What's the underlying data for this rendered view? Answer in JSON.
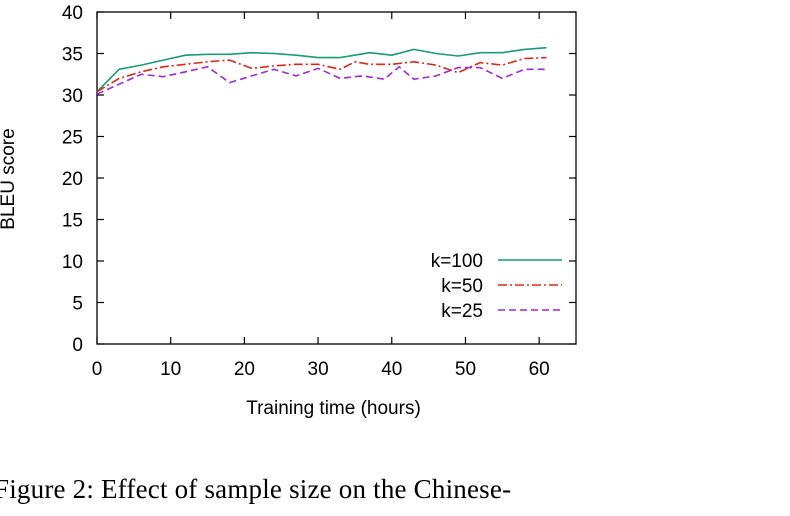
{
  "caption": "Figure 2:  Effect of sample size on the Chinese-",
  "chart_data": {
    "type": "line",
    "title": "",
    "xlabel": "Training time (hours)",
    "ylabel": "BLEU score",
    "xlim": [
      0,
      65
    ],
    "ylim": [
      0,
      40
    ],
    "xticks": [
      0,
      10,
      20,
      30,
      40,
      50,
      60
    ],
    "yticks": [
      0,
      5,
      10,
      15,
      20,
      25,
      30,
      35,
      40
    ],
    "grid": false,
    "legend_position": "bottom-right",
    "series": [
      {
        "name": "k=100",
        "color": "#1a9c6e",
        "dash": "solid",
        "x": [
          0,
          3,
          6,
          9,
          12,
          15,
          18,
          21,
          24,
          27,
          30,
          33,
          37,
          40,
          43,
          46,
          49,
          52,
          55,
          58,
          61
        ],
        "y": [
          30.4,
          33.1,
          33.6,
          34.2,
          34.8,
          34.9,
          34.9,
          35.1,
          35.0,
          34.8,
          34.5,
          34.5,
          35.1,
          34.8,
          35.5,
          35.0,
          34.7,
          35.1,
          35.1,
          35.5,
          35.7
        ]
      },
      {
        "name": "k=50",
        "color": "#d62a1a",
        "dash": "dashdot",
        "x": [
          0,
          3,
          6,
          9,
          12,
          15,
          18,
          21,
          24,
          27,
          30,
          33,
          35,
          37,
          40,
          43,
          46,
          49,
          52,
          55,
          58,
          61
        ],
        "y": [
          30.4,
          32.0,
          32.8,
          33.4,
          33.7,
          34.0,
          34.2,
          33.2,
          33.5,
          33.7,
          33.7,
          33.1,
          34.0,
          33.7,
          33.7,
          34.0,
          33.6,
          32.7,
          33.9,
          33.6,
          34.4,
          34.5
        ]
      },
      {
        "name": "k=25",
        "color": "#9a2bd6",
        "dash": "dashed",
        "x": [
          0,
          3,
          6,
          9,
          12,
          15,
          18,
          21,
          24,
          27,
          30,
          33,
          36,
          39,
          41,
          43,
          46,
          49,
          52,
          55,
          58,
          61
        ],
        "y": [
          30.1,
          31.3,
          32.5,
          32.2,
          32.8,
          33.4,
          31.5,
          32.3,
          33.1,
          32.3,
          33.2,
          32.0,
          32.3,
          31.9,
          33.4,
          31.9,
          32.3,
          33.3,
          33.3,
          32.0,
          33.1,
          33.1
        ]
      }
    ]
  }
}
